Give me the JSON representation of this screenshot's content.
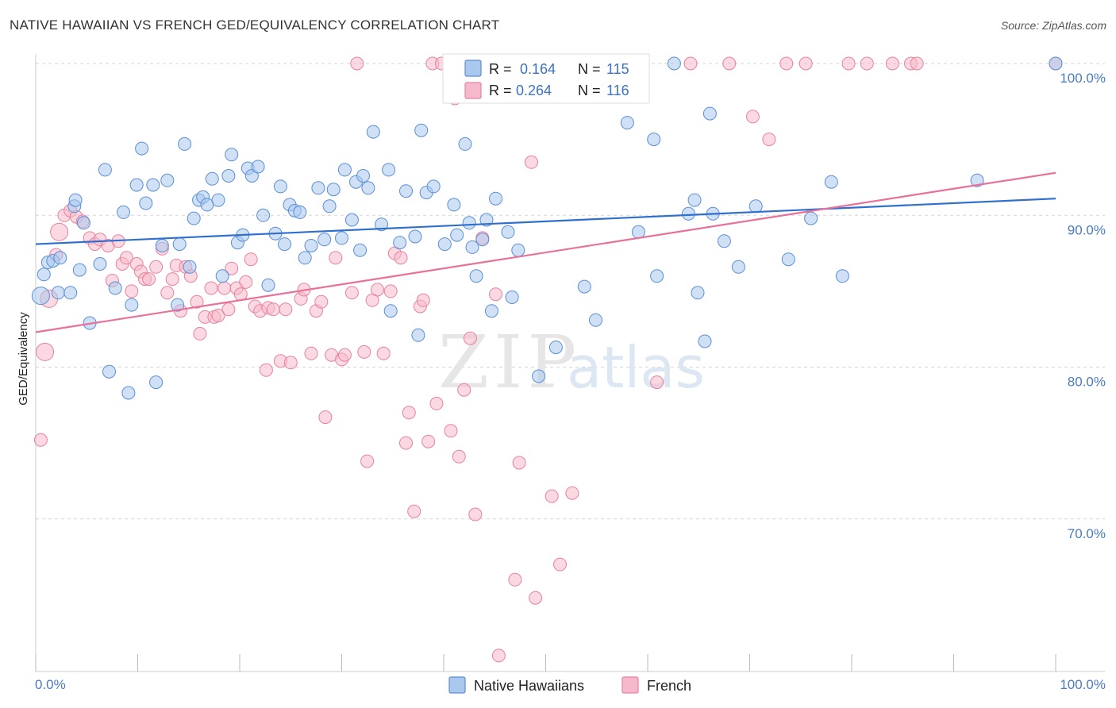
{
  "title": "NATIVE HAWAIIAN VS FRENCH GED/EQUIVALENCY CORRELATION CHART",
  "source": "Source: ZipAtlas.com",
  "watermark": {
    "zip": "ZIP",
    "atlas": "atlas"
  },
  "legend": {
    "r_label": "R =",
    "n_label": "N =",
    "rows": [
      {
        "r": "0.164",
        "n": "115",
        "color": "#a9c8ee"
      },
      {
        "r": "0.264",
        "n": "116",
        "color": "#f5b9cb"
      }
    ]
  },
  "bottom_legend": [
    "Native Hawaiians",
    "French"
  ],
  "colors": {
    "blue_fill": "#a9c8ee",
    "blue_stroke": "#5b8fd4",
    "blue_line": "#2f6fcf",
    "pink_fill": "#f5b9cb",
    "pink_stroke": "#e7829f",
    "pink_line": "#e8709a",
    "grid": "#d5d5d5",
    "tick_text": "#4a7cc0"
  },
  "chart_data": {
    "type": "scatter",
    "xlabel": "",
    "ylabel": "GED/Equivalency",
    "xlim": [
      0,
      100
    ],
    "ylim": [
      60,
      100
    ],
    "x_tick_labels": [
      "0.0%",
      "100.0%"
    ],
    "y_ticks": [
      {
        "value": 100,
        "label": "100.0%"
      },
      {
        "value": 90,
        "label": "90.0%"
      },
      {
        "value": 80,
        "label": "80.0%"
      },
      {
        "value": 70,
        "label": "70.0%"
      }
    ],
    "grid": true,
    "legend_position": "top-center",
    "series": [
      {
        "name": "Native Hawaiians",
        "trend": {
          "x": [
            0,
            100
          ],
          "y": [
            88.1,
            91.1
          ]
        },
        "points": [
          [
            0.5,
            84.7
          ],
          [
            0.8,
            86.1
          ],
          [
            1.2,
            86.9
          ],
          [
            1.7,
            87.0
          ],
          [
            2.4,
            87.2
          ],
          [
            2.2,
            84.9
          ],
          [
            3.4,
            84.9
          ],
          [
            3.8,
            90.6
          ],
          [
            3.9,
            91.0
          ],
          [
            4.3,
            86.4
          ],
          [
            4.7,
            89.5
          ],
          [
            5.3,
            82.9
          ],
          [
            6.3,
            86.8
          ],
          [
            6.8,
            93.0
          ],
          [
            7.2,
            79.7
          ],
          [
            7.8,
            85.2
          ],
          [
            8.6,
            90.2
          ],
          [
            9.1,
            78.3
          ],
          [
            9.4,
            84.1
          ],
          [
            9.9,
            92.0
          ],
          [
            10.4,
            94.4
          ],
          [
            10.8,
            90.8
          ],
          [
            11.5,
            92.0
          ],
          [
            11.8,
            79.0
          ],
          [
            12.4,
            88.0
          ],
          [
            12.9,
            92.3
          ],
          [
            13.9,
            84.1
          ],
          [
            14.1,
            88.1
          ],
          [
            14.6,
            94.7
          ],
          [
            15.1,
            86.6
          ],
          [
            15.5,
            89.8
          ],
          [
            16.0,
            91.0
          ],
          [
            16.4,
            91.2
          ],
          [
            16.8,
            90.7
          ],
          [
            17.3,
            92.4
          ],
          [
            17.9,
            91.0
          ],
          [
            18.3,
            86.0
          ],
          [
            18.9,
            92.6
          ],
          [
            19.2,
            94.0
          ],
          [
            19.8,
            88.2
          ],
          [
            20.3,
            88.7
          ],
          [
            20.8,
            93.1
          ],
          [
            21.2,
            92.6
          ],
          [
            21.8,
            93.2
          ],
          [
            22.3,
            90.0
          ],
          [
            22.8,
            85.4
          ],
          [
            23.5,
            88.8
          ],
          [
            24.0,
            91.9
          ],
          [
            24.4,
            88.1
          ],
          [
            24.9,
            90.7
          ],
          [
            25.4,
            90.3
          ],
          [
            25.9,
            90.2
          ],
          [
            26.4,
            87.2
          ],
          [
            27.0,
            88.0
          ],
          [
            27.7,
            91.8
          ],
          [
            28.3,
            88.4
          ],
          [
            28.8,
            90.6
          ],
          [
            29.2,
            91.7
          ],
          [
            30.0,
            88.5
          ],
          [
            30.3,
            93.0
          ],
          [
            31.0,
            89.7
          ],
          [
            31.4,
            92.2
          ],
          [
            31.8,
            87.7
          ],
          [
            32.1,
            92.6
          ],
          [
            32.6,
            91.8
          ],
          [
            33.1,
            95.5
          ],
          [
            33.9,
            89.4
          ],
          [
            34.6,
            93.0
          ],
          [
            34.8,
            83.7
          ],
          [
            35.7,
            88.2
          ],
          [
            36.3,
            91.6
          ],
          [
            37.2,
            88.6
          ],
          [
            37.5,
            82.1
          ],
          [
            37.8,
            95.6
          ],
          [
            38.3,
            91.5
          ],
          [
            39.0,
            91.9
          ],
          [
            40.1,
            88.1
          ],
          [
            41.0,
            90.7
          ],
          [
            41.3,
            88.7
          ],
          [
            42.1,
            94.7
          ],
          [
            42.5,
            89.5
          ],
          [
            42.8,
            87.9
          ],
          [
            43.2,
            86.0
          ],
          [
            43.8,
            88.4
          ],
          [
            44.2,
            89.7
          ],
          [
            44.7,
            83.7
          ],
          [
            45.1,
            91.1
          ],
          [
            46.3,
            88.9
          ],
          [
            46.7,
            84.6
          ],
          [
            47.3,
            87.7
          ],
          [
            49.3,
            79.4
          ],
          [
            51.0,
            81.3
          ],
          [
            53.8,
            85.3
          ],
          [
            54.9,
            83.1
          ],
          [
            58.0,
            96.1
          ],
          [
            59.1,
            88.9
          ],
          [
            60.6,
            95.0
          ],
          [
            60.9,
            86.0
          ],
          [
            62.6,
            100
          ],
          [
            64.0,
            90.1
          ],
          [
            64.6,
            91.0
          ],
          [
            64.9,
            84.9
          ],
          [
            65.6,
            81.7
          ],
          [
            66.1,
            96.7
          ],
          [
            66.4,
            90.1
          ],
          [
            67.5,
            88.3
          ],
          [
            68.9,
            86.6
          ],
          [
            70.6,
            90.6
          ],
          [
            73.8,
            87.1
          ],
          [
            76.0,
            89.8
          ],
          [
            78.0,
            92.2
          ],
          [
            79.1,
            86.0
          ],
          [
            92.3,
            92.3
          ],
          [
            100,
            100
          ]
        ]
      },
      {
        "name": "French",
        "trend": {
          "x": [
            0,
            100
          ],
          "y": [
            82.3,
            92.8
          ]
        },
        "points": [
          [
            0.5,
            75.2
          ],
          [
            0.9,
            81.0
          ],
          [
            1.3,
            84.5
          ],
          [
            2.0,
            87.4
          ],
          [
            2.3,
            88.9
          ],
          [
            2.8,
            90.0
          ],
          [
            3.4,
            90.3
          ],
          [
            4.0,
            89.9
          ],
          [
            4.6,
            89.6
          ],
          [
            5.3,
            88.5
          ],
          [
            5.8,
            88.1
          ],
          [
            6.3,
            88.4
          ],
          [
            7.1,
            88.0
          ],
          [
            7.5,
            85.7
          ],
          [
            8.1,
            88.3
          ],
          [
            8.5,
            86.8
          ],
          [
            8.9,
            87.2
          ],
          [
            9.4,
            85.0
          ],
          [
            9.9,
            86.8
          ],
          [
            10.3,
            86.3
          ],
          [
            10.7,
            85.8
          ],
          [
            11.1,
            85.8
          ],
          [
            11.8,
            86.6
          ],
          [
            12.4,
            87.8
          ],
          [
            12.9,
            84.9
          ],
          [
            13.4,
            85.8
          ],
          [
            13.8,
            86.7
          ],
          [
            14.2,
            83.7
          ],
          [
            14.7,
            86.6
          ],
          [
            15.2,
            86.0
          ],
          [
            15.8,
            84.3
          ],
          [
            16.1,
            82.2
          ],
          [
            16.6,
            83.3
          ],
          [
            17.2,
            85.2
          ],
          [
            17.5,
            83.3
          ],
          [
            17.9,
            83.4
          ],
          [
            18.5,
            85.2
          ],
          [
            18.9,
            83.8
          ],
          [
            19.2,
            86.5
          ],
          [
            19.7,
            85.2
          ],
          [
            20.1,
            84.8
          ],
          [
            20.6,
            85.6
          ],
          [
            21.1,
            87.1
          ],
          [
            21.5,
            84.0
          ],
          [
            22.0,
            83.7
          ],
          [
            22.6,
            79.8
          ],
          [
            22.8,
            83.9
          ],
          [
            23.3,
            83.8
          ],
          [
            24.0,
            80.4
          ],
          [
            24.5,
            83.8
          ],
          [
            25.0,
            80.3
          ],
          [
            26.0,
            84.5
          ],
          [
            26.3,
            85.1
          ],
          [
            27.0,
            80.9
          ],
          [
            27.5,
            83.7
          ],
          [
            28.0,
            84.3
          ],
          [
            28.4,
            76.7
          ],
          [
            29.0,
            80.8
          ],
          [
            29.4,
            87.2
          ],
          [
            30.0,
            80.5
          ],
          [
            30.3,
            80.8
          ],
          [
            31.0,
            84.9
          ],
          [
            31.5,
            100
          ],
          [
            32.2,
            81.0
          ],
          [
            32.5,
            73.8
          ],
          [
            33.0,
            84.4
          ],
          [
            33.5,
            85.1
          ],
          [
            34.1,
            80.9
          ],
          [
            34.8,
            85.0
          ],
          [
            35.2,
            87.5
          ],
          [
            35.8,
            87.2
          ],
          [
            36.3,
            75.0
          ],
          [
            36.6,
            77.0
          ],
          [
            37.1,
            70.5
          ],
          [
            37.7,
            84.0
          ],
          [
            38.0,
            84.4
          ],
          [
            38.5,
            75.1
          ],
          [
            38.9,
            100
          ],
          [
            39.3,
            77.6
          ],
          [
            39.8,
            100
          ],
          [
            40.7,
            75.8
          ],
          [
            41.1,
            97.7
          ],
          [
            41.5,
            74.1
          ],
          [
            42.0,
            78.5
          ],
          [
            42.6,
            81.9
          ],
          [
            43.1,
            70.3
          ],
          [
            43.8,
            88.5
          ],
          [
            45.1,
            84.8
          ],
          [
            45.4,
            61.0
          ],
          [
            46.3,
            100
          ],
          [
            47.0,
            66.0
          ],
          [
            47.4,
            73.7
          ],
          [
            48.0,
            100
          ],
          [
            48.6,
            93.5
          ],
          [
            49.0,
            64.8
          ],
          [
            50.2,
            100
          ],
          [
            50.6,
            71.5
          ],
          [
            51.4,
            67.0
          ],
          [
            52.6,
            71.7
          ],
          [
            54.8,
            100
          ],
          [
            56.0,
            100
          ],
          [
            60.9,
            79.0
          ],
          [
            64.2,
            100
          ],
          [
            68.0,
            100
          ],
          [
            70.3,
            96.5
          ],
          [
            71.9,
            95.0
          ],
          [
            73.6,
            100
          ],
          [
            75.5,
            100
          ],
          [
            79.7,
            100
          ],
          [
            81.5,
            100
          ],
          [
            84.0,
            100
          ],
          [
            85.8,
            100
          ],
          [
            86.4,
            100
          ],
          [
            100,
            100
          ]
        ]
      }
    ]
  }
}
